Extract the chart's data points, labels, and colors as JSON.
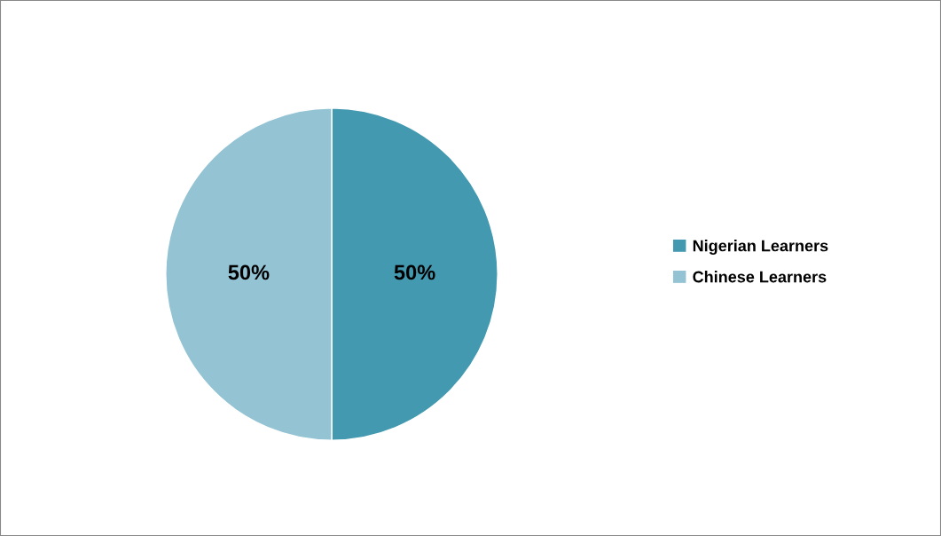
{
  "chart_data": {
    "type": "pie",
    "categories": [
      "Nigerian Learners",
      "Chinese Learners"
    ],
    "values": [
      50,
      50
    ],
    "colors": [
      "#4399b0",
      "#94c3d4"
    ],
    "data_labels": true,
    "value_labels": [
      "50%",
      "50%"
    ],
    "legend": "right"
  }
}
